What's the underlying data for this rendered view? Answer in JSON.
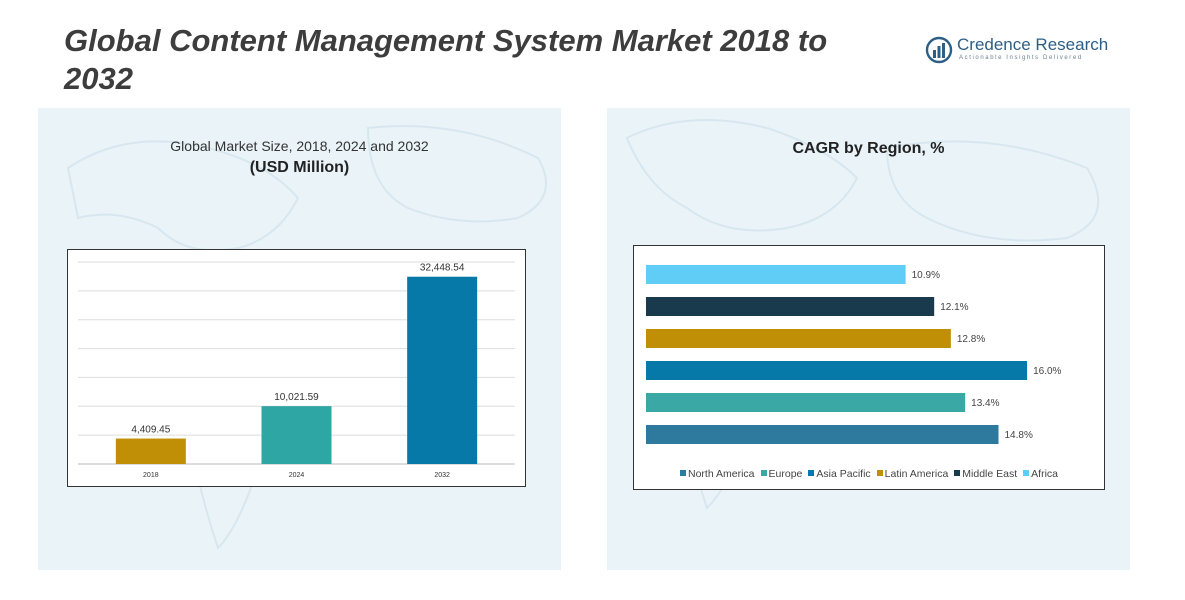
{
  "title": "Global Content Management System Market 2018 to 2032",
  "logo": {
    "name": "Credence Research",
    "tagline": "Actionable Insights Delivered",
    "color": "#2d5f86"
  },
  "left_panel": {
    "heading": "Global Market Size, 2018, 2024 and 2032",
    "subheading": "(USD Million)"
  },
  "right_panel": {
    "heading": "CAGR by Region, %"
  },
  "chart_data": [
    {
      "type": "bar",
      "title": "Global Market Size, 2018, 2024 and 2032",
      "subtitle": "(USD Million)",
      "categories": [
        "2018",
        "2024",
        "2032"
      ],
      "values": [
        4409.45,
        10021.59,
        32448.54
      ],
      "value_labels": [
        "4,409.45",
        "10,021.59",
        "32,448.54"
      ],
      "colors": [
        "#c08f06",
        "#2ea6a3",
        "#0779a8"
      ],
      "ylim": [
        0,
        35000
      ],
      "grid": true,
      "legend": "none"
    },
    {
      "type": "bar",
      "orientation": "horizontal",
      "title": "CAGR by Region, %",
      "categories": [
        "Africa",
        "Middle East",
        "Latin America",
        "Asia Pacific",
        "Europe",
        "North America"
      ],
      "values": [
        10.9,
        12.1,
        12.8,
        16.0,
        13.4,
        14.8
      ],
      "value_labels": [
        "10.9%",
        "12.1%",
        "12.8%",
        "16.0%",
        "13.4%",
        "14.8%"
      ],
      "colors": [
        "#5fcdf5",
        "#193a4c",
        "#c08f06",
        "#0779a8",
        "#3aa9a5",
        "#2d7a9e"
      ],
      "xlim": [
        0,
        16.5
      ],
      "grid": false,
      "legend": "bottom",
      "legend_order": [
        "North America",
        "Europe",
        "Asia Pacific",
        "Latin America",
        "Middle East",
        "Africa"
      ]
    }
  ]
}
